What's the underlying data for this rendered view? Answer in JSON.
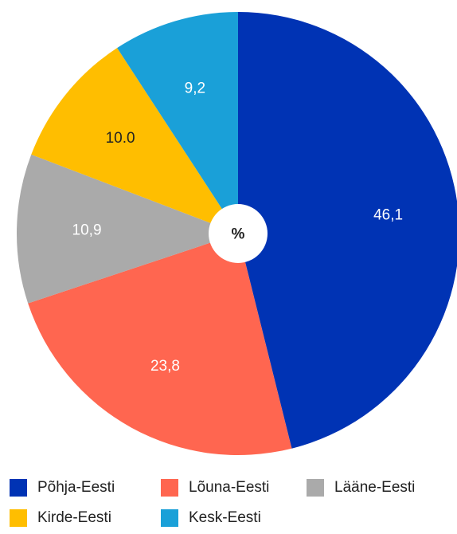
{
  "chart_data": {
    "type": "pie",
    "title": "",
    "center_label": "%",
    "categories": [
      "Põhja-Eesti",
      "Lõuna-Eesti",
      "Lääne-Eesti",
      "Kirde-Eesti",
      "Kesk-Eesti"
    ],
    "values": [
      46.1,
      23.8,
      10.9,
      10.0,
      9.2
    ],
    "value_labels": [
      "46,1",
      "23,8",
      "10,9",
      "10.0",
      "9,2"
    ],
    "colors": [
      "#0033b4",
      "#ff6650",
      "#aaaaaa",
      "#ffbe00",
      "#1aa0d8"
    ],
    "start_angle_deg": 0,
    "direction": "clockwise",
    "legend": "bottom",
    "donut_center": true
  }
}
